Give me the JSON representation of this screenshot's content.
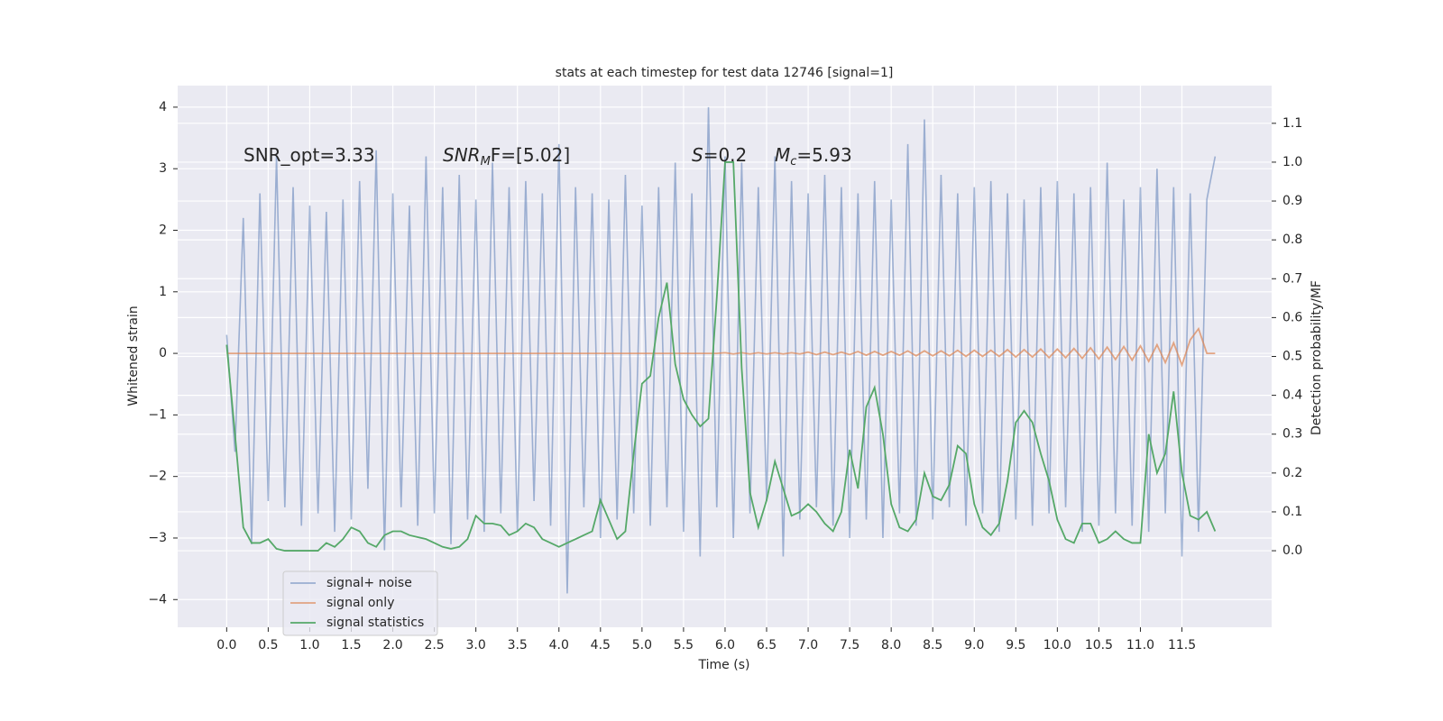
{
  "chart_data": {
    "type": "line",
    "title": "stats at each timestep for test data 12746 [signal=1]",
    "xlabel": "Time (s)",
    "ylabel": "Whitened strain",
    "y2label": "Detection probability/MF",
    "annotations": [
      {
        "text": "SNR_opt=3.33"
      },
      {
        "main": "SNR",
        "sub": "M",
        "tail": "F=[5.02]"
      },
      {
        "main": "S",
        "tail": "=0.2"
      },
      {
        "main": "M",
        "sub": "c",
        "tail": "=5.93"
      }
    ],
    "x": [
      0.0,
      0.1,
      0.2,
      0.3,
      0.4,
      0.5,
      0.6,
      0.7,
      0.8,
      0.9,
      1.0,
      1.1,
      1.2,
      1.3,
      1.4,
      1.5,
      1.6,
      1.7,
      1.8,
      1.9,
      2.0,
      2.1,
      2.2,
      2.3,
      2.4,
      2.5,
      2.6,
      2.7,
      2.8,
      2.9,
      3.0,
      3.1,
      3.2,
      3.3,
      3.4,
      3.5,
      3.6,
      3.7,
      3.8,
      3.9,
      4.0,
      4.1,
      4.2,
      4.3,
      4.4,
      4.5,
      4.6,
      4.7,
      4.8,
      4.9,
      5.0,
      5.1,
      5.2,
      5.3,
      5.4,
      5.5,
      5.6,
      5.7,
      5.8,
      5.9,
      6.0,
      6.1,
      6.2,
      6.3,
      6.4,
      6.5,
      6.6,
      6.7,
      6.8,
      6.9,
      7.0,
      7.1,
      7.2,
      7.3,
      7.4,
      7.5,
      7.6,
      7.7,
      7.8,
      7.9,
      8.0,
      8.1,
      8.2,
      8.3,
      8.4,
      8.5,
      8.6,
      8.7,
      8.8,
      8.9,
      9.0,
      9.1,
      9.2,
      9.3,
      9.4,
      9.5,
      9.6,
      9.7,
      9.8,
      9.9,
      10.0,
      10.1,
      10.2,
      10.3,
      10.4,
      10.5,
      10.6,
      10.7,
      10.8,
      10.9,
      11.0,
      11.1,
      11.2,
      11.3,
      11.4,
      11.5,
      11.6,
      11.7,
      11.8,
      11.9
    ],
    "series": [
      {
        "name": "signal+ noise",
        "color": "#4c72b0",
        "values": [
          0.3,
          -1.6,
          2.2,
          -3.1,
          2.6,
          -2.4,
          3.2,
          -2.5,
          2.7,
          -2.8,
          2.4,
          -2.6,
          2.3,
          -2.9,
          2.5,
          -2.7,
          2.8,
          -2.2,
          3.3,
          -3.2,
          2.6,
          -2.5,
          2.4,
          -2.8,
          3.2,
          -2.6,
          2.7,
          -3.1,
          2.9,
          -2.7,
          2.5,
          -2.9,
          3.1,
          -2.6,
          2.7,
          -2.9,
          2.8,
          -2.4,
          2.6,
          -2.8,
          3.4,
          -3.9,
          2.7,
          -2.5,
          2.6,
          -3.0,
          2.5,
          -2.7,
          2.9,
          -2.6,
          2.4,
          -2.8,
          2.7,
          -2.5,
          3.1,
          -2.9,
          2.6,
          -3.3,
          4.0,
          -2.5,
          3.2,
          -3.0,
          3.1,
          -2.6,
          2.7,
          -2.4,
          3.2,
          -3.3,
          2.8,
          -2.7,
          2.6,
          -2.5,
          2.9,
          -2.8,
          2.7,
          -3.0,
          2.6,
          -2.7,
          2.8,
          -3.0,
          2.5,
          -2.6,
          3.4,
          -2.8,
          3.8,
          -2.7,
          2.9,
          -2.5,
          2.6,
          -2.8,
          2.7,
          -2.6,
          2.8,
          -2.9,
          2.6,
          -2.7,
          2.5,
          -2.8,
          2.7,
          -2.6,
          2.8,
          -2.5,
          2.6,
          -2.9,
          2.7,
          -2.8,
          3.1,
          -2.6,
          2.5,
          -2.8,
          2.7,
          -2.9,
          3.0,
          -2.6,
          2.7,
          -3.3,
          2.6,
          -2.9,
          2.5,
          3.2
        ]
      },
      {
        "name": "signal only",
        "color": "#dd8452",
        "values": [
          0.0,
          0.0,
          0.0,
          0.0,
          0.0,
          0.0,
          0.0,
          0.0,
          0.0,
          0.0,
          0.0,
          0.0,
          0.0,
          0.0,
          0.0,
          0.0,
          0.0,
          0.0,
          0.0,
          0.0,
          0.0,
          0.0,
          0.0,
          0.0,
          0.0,
          0.0,
          0.0,
          0.0,
          0.0,
          0.0,
          0.0,
          0.0,
          0.0,
          0.0,
          0.0,
          0.0,
          0.0,
          0.0,
          0.0,
          0.0,
          0.0,
          0.0,
          0.0,
          0.0,
          0.0,
          0.0,
          0.0,
          0.0,
          0.0,
          0.0,
          0.0,
          0.0,
          0.0,
          0.0,
          0.0,
          0.0,
          0.0,
          0.0,
          0.0,
          0.0,
          0.01,
          -0.01,
          0.01,
          -0.01,
          0.01,
          -0.01,
          0.01,
          -0.01,
          0.01,
          -0.01,
          0.02,
          -0.02,
          0.02,
          -0.02,
          0.02,
          -0.02,
          0.03,
          -0.03,
          0.03,
          -0.03,
          0.03,
          -0.03,
          0.04,
          -0.04,
          0.04,
          -0.04,
          0.04,
          -0.04,
          0.05,
          -0.05,
          0.05,
          -0.05,
          0.05,
          -0.05,
          0.06,
          -0.06,
          0.06,
          -0.06,
          0.07,
          -0.07,
          0.07,
          -0.07,
          0.08,
          -0.08,
          0.09,
          -0.09,
          0.1,
          -0.1,
          0.11,
          -0.11,
          0.12,
          -0.13,
          0.14,
          -0.15,
          0.17,
          -0.19,
          0.22,
          0.4,
          0.0,
          0.0
        ]
      },
      {
        "name": "signal statistics",
        "color": "#55a868",
        "axis": "y2",
        "values": [
          0.53,
          0.3,
          0.06,
          0.02,
          0.02,
          0.03,
          0.005,
          0.0,
          0.0,
          0.0,
          0.0,
          0.0,
          0.02,
          0.01,
          0.03,
          0.06,
          0.05,
          0.02,
          0.01,
          0.04,
          0.05,
          0.05,
          0.04,
          0.035,
          0.03,
          0.02,
          0.01,
          0.005,
          0.01,
          0.03,
          0.09,
          0.07,
          0.07,
          0.065,
          0.04,
          0.05,
          0.07,
          0.06,
          0.03,
          0.02,
          0.01,
          0.02,
          0.03,
          0.04,
          0.05,
          0.13,
          0.08,
          0.03,
          0.05,
          0.25,
          0.43,
          0.45,
          0.6,
          0.69,
          0.48,
          0.39,
          0.35,
          0.32,
          0.34,
          0.65,
          1.0,
          1.0,
          0.47,
          0.15,
          0.06,
          0.13,
          0.23,
          0.16,
          0.09,
          0.1,
          0.12,
          0.1,
          0.07,
          0.05,
          0.1,
          0.26,
          0.16,
          0.37,
          0.42,
          0.3,
          0.12,
          0.06,
          0.05,
          0.08,
          0.2,
          0.14,
          0.13,
          0.17,
          0.27,
          0.25,
          0.12,
          0.06,
          0.04,
          0.07,
          0.18,
          0.33,
          0.36,
          0.33,
          0.25,
          0.18,
          0.08,
          0.03,
          0.02,
          0.07,
          0.07,
          0.02,
          0.03,
          0.05,
          0.03,
          0.02,
          0.02,
          0.3,
          0.2,
          0.25,
          0.41,
          0.2,
          0.09,
          0.08,
          0.1,
          0.05
        ]
      }
    ],
    "xlim": [
      -0.59,
      12.58
    ],
    "ylim": [
      -4.45,
      4.35
    ],
    "y2lim": [
      -0.197,
      1.197
    ],
    "xticks": [
      {
        "value": 0,
        "label": "0.0"
      },
      0.5,
      {
        "value": 1,
        "label": "1.0"
      },
      1.5,
      {
        "value": 2,
        "label": "2.0"
      },
      2.5,
      {
        "value": 3,
        "label": "3.0"
      },
      3.5,
      {
        "value": 4,
        "label": "4.0"
      },
      4.5,
      {
        "value": 5,
        "label": "5.0"
      },
      5.5,
      {
        "value": 6,
        "label": "6.0"
      },
      6.5,
      {
        "value": 7,
        "label": "7.0"
      },
      7.5,
      {
        "value": 8,
        "label": "8.0"
      },
      8.5,
      {
        "value": 9,
        "label": "9.0"
      },
      9.5,
      {
        "value": 10,
        "label": "10.0"
      },
      10.5,
      {
        "value": 11,
        "label": "11.0"
      },
      11.5
    ],
    "yticks": [
      {
        "value": -4,
        "label": "−4"
      },
      {
        "value": -3,
        "label": "−3"
      },
      {
        "value": -2,
        "label": "−2"
      },
      {
        "value": -1,
        "label": "−1"
      },
      0,
      1,
      2,
      3,
      4
    ],
    "y2ticks": [
      {
        "value": 0,
        "label": "0.0"
      },
      0.1,
      0.2,
      0.3,
      0.4,
      0.5,
      0.6,
      0.7,
      0.8,
      0.9,
      {
        "value": 1,
        "label": "1.0"
      },
      1.1
    ],
    "grid": true,
    "legend": "lower left"
  }
}
